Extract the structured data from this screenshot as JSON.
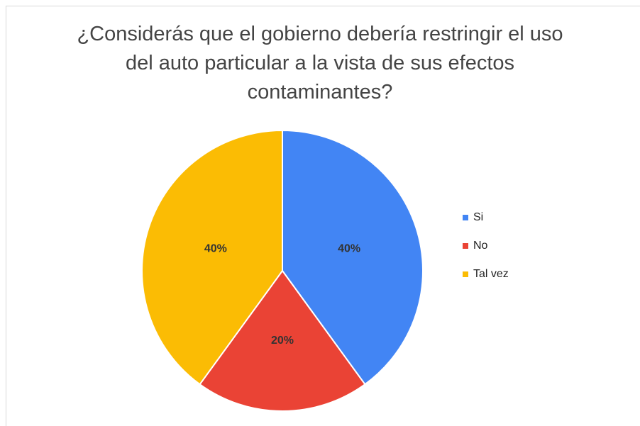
{
  "chart_data": {
    "type": "pie",
    "title": "¿Considerás que el gobierno debería restringir el uso del auto particular a la vista de sus efectos contaminantes?",
    "categories": [
      "Si",
      "No",
      "Tal vez"
    ],
    "values": [
      40,
      20,
      40
    ],
    "value_labels": [
      "40%",
      "20%",
      "40%"
    ],
    "colors": [
      "#4285f4",
      "#ea4335",
      "#fbbc04"
    ],
    "legend": "right"
  }
}
